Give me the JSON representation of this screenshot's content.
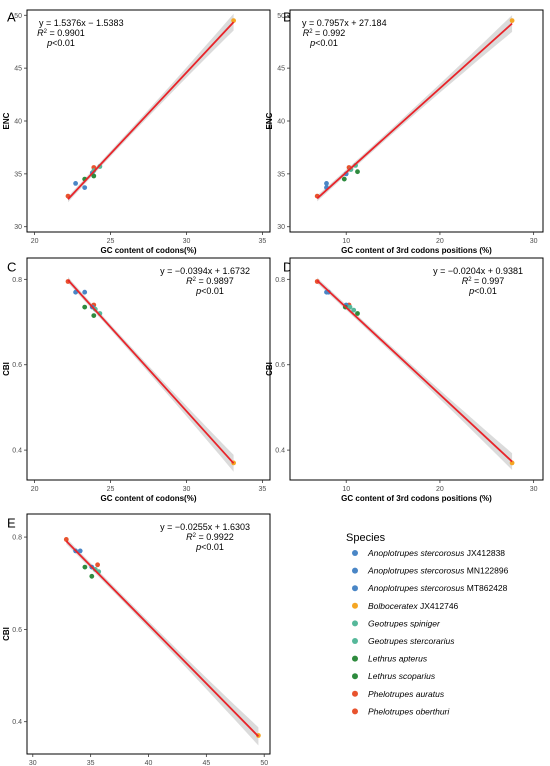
{
  "species": [
    {
      "key": "as1",
      "genus": "Anoplotrupes stercorosus",
      "acc": "JX412838",
      "color": "#4a86c6"
    },
    {
      "key": "as2",
      "genus": "Anoplotrupes stercorosus",
      "acc": "MN122896",
      "color": "#4a86c6"
    },
    {
      "key": "as3",
      "genus": "Anoplotrupes stercorosus",
      "acc": "MT862428",
      "color": "#4a86c6"
    },
    {
      "key": "bol",
      "genus": "Bolboceratex",
      "acc": "JX412746",
      "color": "#f5a623"
    },
    {
      "key": "gsp",
      "genus": "Geotrupes spiniger",
      "acc": "",
      "color": "#56b89a"
    },
    {
      "key": "gst",
      "genus": "Geotrupes stercorarius",
      "acc": "",
      "color": "#56b89a"
    },
    {
      "key": "lap",
      "genus": "Lethrus apterus",
      "acc": "",
      "color": "#2e8b3e"
    },
    {
      "key": "lsc",
      "genus": "Lethrus scoparius",
      "acc": "",
      "color": "#2e8b3e"
    },
    {
      "key": "pau",
      "genus": "Phelotrupes auratus",
      "acc": "",
      "color": "#e8532e"
    },
    {
      "key": "pob",
      "genus": "Phelotrupes oberthuri",
      "acc": "",
      "color": "#e8532e"
    }
  ],
  "legend": {
    "title": "Species"
  },
  "chart_data": [
    {
      "id": "A",
      "type": "scatter",
      "xlabel": "GC content of codons(%)",
      "ylabel": "ENC",
      "xlim": [
        19.5,
        35.5
      ],
      "ylim": [
        29.5,
        50.5
      ],
      "xticks": [
        20,
        25,
        30,
        35
      ],
      "yticks": [
        30,
        35,
        40,
        45,
        50
      ],
      "fit": {
        "slope": 1.5376,
        "intercept": -1.5383,
        "x_range": [
          22.2,
          33.1
        ]
      },
      "equation": "y = 1.5376x − 1.5383",
      "r2_label": "R",
      "r2_value": " = 0.9901",
      "p_label": "p",
      "p_value": "<0.01",
      "eq_anchor": "left",
      "points": [
        {
          "s": "pau",
          "x": 22.2,
          "y": 32.9
        },
        {
          "s": "pob",
          "x": 23.9,
          "y": 35.6
        },
        {
          "s": "as1",
          "x": 22.7,
          "y": 34.1
        },
        {
          "s": "as2",
          "x": 23.3,
          "y": 33.7
        },
        {
          "s": "as3",
          "x": 23.8,
          "y": 35.1
        },
        {
          "s": "lap",
          "x": 23.3,
          "y": 34.5
        },
        {
          "s": "lsc",
          "x": 23.9,
          "y": 34.8
        },
        {
          "s": "gsp",
          "x": 24.3,
          "y": 35.7
        },
        {
          "s": "gst",
          "x": 23.9,
          "y": 35.3
        },
        {
          "s": "bol",
          "x": 33.1,
          "y": 49.5
        }
      ]
    },
    {
      "id": "B",
      "type": "scatter",
      "xlabel": "GC content of 3rd codons positions (%)",
      "ylabel": "ENC",
      "xlim": [
        4.0,
        31.0
      ],
      "ylim": [
        29.5,
        50.5
      ],
      "xticks": [
        10,
        20,
        30
      ],
      "yticks": [
        30,
        35,
        40,
        45,
        50
      ],
      "fit": {
        "slope": 0.7957,
        "intercept": 27.184,
        "x_range": [
          6.9,
          27.7
        ]
      },
      "equation": "y = 0.7957x + 27.184",
      "r2_label": "R",
      "r2_value": " = 0.992",
      "p_label": "p",
      "p_value": "<0.01",
      "eq_anchor": "left",
      "points": [
        {
          "s": "pau",
          "x": 6.9,
          "y": 32.9
        },
        {
          "s": "pob",
          "x": 10.3,
          "y": 35.6
        },
        {
          "s": "as1",
          "x": 7.9,
          "y": 34.1
        },
        {
          "s": "as2",
          "x": 7.9,
          "y": 33.7
        },
        {
          "s": "as3",
          "x": 10.0,
          "y": 35.0
        },
        {
          "s": "lap",
          "x": 9.8,
          "y": 34.5
        },
        {
          "s": "lsc",
          "x": 11.2,
          "y": 35.2
        },
        {
          "s": "gsp",
          "x": 11.0,
          "y": 35.8
        },
        {
          "s": "gst",
          "x": 10.5,
          "y": 35.4
        },
        {
          "s": "bol",
          "x": 27.7,
          "y": 49.5
        }
      ]
    },
    {
      "id": "C",
      "type": "scatter",
      "xlabel": "GC content of codons(%)",
      "ylabel": "CBI",
      "xlim": [
        19.5,
        35.5
      ],
      "ylim": [
        0.33,
        0.85
      ],
      "xticks": [
        20,
        25,
        30,
        35
      ],
      "yticks": [
        0.4,
        0.6,
        0.8
      ],
      "fit": {
        "slope": -0.0394,
        "intercept": 1.6732,
        "x_range": [
          22.2,
          33.1
        ]
      },
      "equation": "y = −0.0394x + 1.6732",
      "r2_label": "R",
      "r2_value": " = 0.9897",
      "p_label": "p",
      "p_value": "<0.01",
      "eq_anchor": "right",
      "points": [
        {
          "s": "pau",
          "x": 22.2,
          "y": 0.795
        },
        {
          "s": "pob",
          "x": 23.9,
          "y": 0.74
        },
        {
          "s": "as1",
          "x": 22.7,
          "y": 0.77
        },
        {
          "s": "as2",
          "x": 23.3,
          "y": 0.77
        },
        {
          "s": "as3",
          "x": 23.8,
          "y": 0.735
        },
        {
          "s": "lap",
          "x": 23.3,
          "y": 0.735
        },
        {
          "s": "lsc",
          "x": 23.9,
          "y": 0.715
        },
        {
          "s": "gsp",
          "x": 24.3,
          "y": 0.72
        },
        {
          "s": "gst",
          "x": 24.0,
          "y": 0.73
        },
        {
          "s": "bol",
          "x": 33.1,
          "y": 0.37
        }
      ]
    },
    {
      "id": "D",
      "type": "scatter",
      "xlabel": "GC content of 3rd codons positions (%)",
      "ylabel": "CBI",
      "xlim": [
        4.0,
        31.0
      ],
      "ylim": [
        0.33,
        0.85
      ],
      "xticks": [
        10,
        20,
        30
      ],
      "yticks": [
        0.4,
        0.6,
        0.8
      ],
      "fit": {
        "slope": -0.0204,
        "intercept": 0.9381,
        "x_range": [
          6.9,
          27.7
        ]
      },
      "equation": "y = −0.0204x + 0.9381",
      "r2_label": "R",
      "r2_value": " = 0.997",
      "p_label": "p",
      "p_value": "<0.01",
      "eq_anchor": "right",
      "points": [
        {
          "s": "pau",
          "x": 6.9,
          "y": 0.795
        },
        {
          "s": "pob",
          "x": 10.3,
          "y": 0.74
        },
        {
          "s": "as1",
          "x": 7.9,
          "y": 0.77
        },
        {
          "s": "as2",
          "x": 8.1,
          "y": 0.77
        },
        {
          "s": "as3",
          "x": 10.0,
          "y": 0.74
        },
        {
          "s": "lap",
          "x": 9.9,
          "y": 0.735
        },
        {
          "s": "lsc",
          "x": 11.2,
          "y": 0.72
        },
        {
          "s": "gsp",
          "x": 10.8,
          "y": 0.728
        },
        {
          "s": "gst",
          "x": 10.4,
          "y": 0.735
        },
        {
          "s": "bol",
          "x": 27.7,
          "y": 0.37
        }
      ]
    },
    {
      "id": "E",
      "type": "scatter",
      "xlabel": "ENC",
      "ylabel": "CBI",
      "xlim": [
        29.5,
        50.5
      ],
      "ylim": [
        0.33,
        0.85
      ],
      "xticks": [
        30,
        35,
        40,
        45,
        50
      ],
      "yticks": [
        0.4,
        0.6,
        0.8
      ],
      "fit": {
        "slope": -0.0255,
        "intercept": 1.6303,
        "x_range": [
          32.9,
          49.5
        ]
      },
      "equation": "y = −0.0255x + 1.6303",
      "r2_label": "R",
      "r2_value": " = 0.9922",
      "p_label": "p",
      "p_value": "<0.01",
      "eq_anchor": "right",
      "points": [
        {
          "s": "pau",
          "x": 32.9,
          "y": 0.795
        },
        {
          "s": "pob",
          "x": 35.6,
          "y": 0.74
        },
        {
          "s": "as1",
          "x": 34.1,
          "y": 0.77
        },
        {
          "s": "as2",
          "x": 33.7,
          "y": 0.77
        },
        {
          "s": "as3",
          "x": 35.1,
          "y": 0.735
        },
        {
          "s": "lap",
          "x": 34.5,
          "y": 0.735
        },
        {
          "s": "lsc",
          "x": 35.1,
          "y": 0.715
        },
        {
          "s": "gsp",
          "x": 35.7,
          "y": 0.725
        },
        {
          "s": "gst",
          "x": 35.4,
          "y": 0.73
        },
        {
          "s": "bol",
          "x": 49.5,
          "y": 0.37
        }
      ]
    }
  ]
}
